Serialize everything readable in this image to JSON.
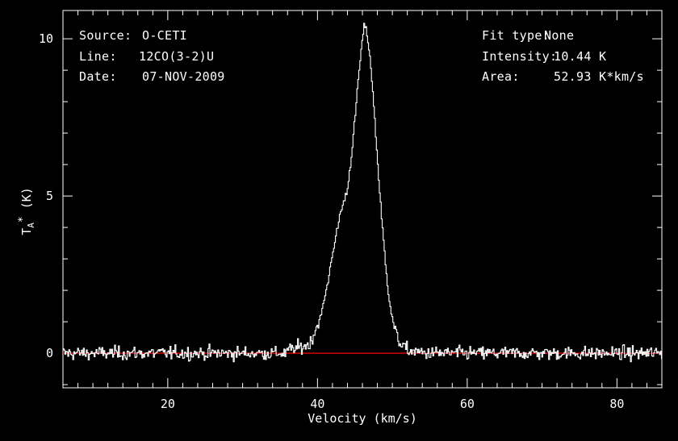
{
  "header": {
    "source_label": "Source:",
    "source_value": "O-CETI",
    "line_label": "Line:",
    "line_value": "12CO(3-2)U",
    "date_label": "Date:",
    "date_value": "07-NOV-2009",
    "fit_label": "Fit type:",
    "fit_value": "None",
    "intensity_label": "Intensity:",
    "intensity_value": "10.44 K",
    "area_label": "Area:",
    "area_value": "52.93 K*km/s"
  },
  "chart_data": {
    "type": "line",
    "xlabel": "Velocity (km/s)",
    "ylabel": "TA* (K)",
    "xlim": [
      6,
      86
    ],
    "ylim": [
      -1.1,
      10.9
    ],
    "x_ticks": [
      20,
      40,
      60,
      80
    ],
    "y_ticks": [
      0,
      5,
      10
    ],
    "series": [
      {
        "x": [
          36,
          37,
          38,
          39,
          39.5,
          40,
          40.5,
          41,
          41.5,
          42,
          42.5,
          43,
          43.5,
          44,
          44.5,
          45,
          45.5,
          46,
          46.3,
          46.6,
          47,
          47.5,
          48,
          48.5,
          49,
          49.5,
          50,
          50.5,
          51,
          51.5,
          52,
          53,
          54,
          55
        ],
        "values": [
          0.1,
          0.15,
          0.2,
          0.3,
          0.6,
          0.9,
          1.2,
          1.8,
          2.4,
          3.2,
          3.7,
          4.4,
          4.8,
          5.2,
          6.2,
          7.4,
          8.8,
          10.0,
          10.44,
          10.2,
          9.5,
          8.0,
          6.2,
          4.5,
          3.1,
          1.9,
          1.1,
          0.6,
          0.35,
          0.2,
          0.1,
          0.05,
          0.02,
          0.0
        ],
        "noise_rms": 0.18,
        "color": "#ffffff"
      }
    ],
    "baseline": {
      "y": 0,
      "color": "#ff0000"
    }
  },
  "colors": {
    "background": "#000000",
    "foreground": "#ffffff",
    "baseline": "#ff0000"
  }
}
